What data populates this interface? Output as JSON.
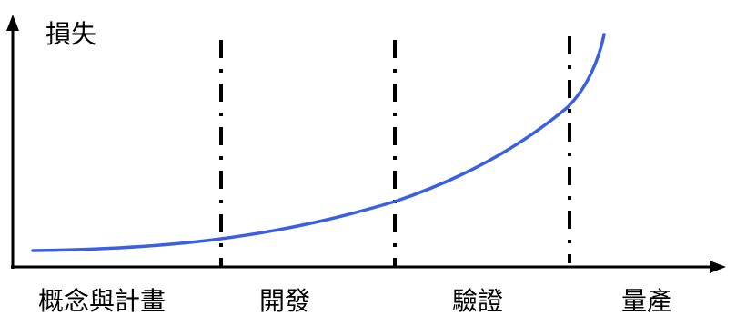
{
  "y_axis_label": "損失",
  "phases": [
    {
      "label": "概念與計畫"
    },
    {
      "label": "開發"
    },
    {
      "label": "驗證"
    },
    {
      "label": "量產"
    }
  ],
  "colors": {
    "axis": "#000000",
    "curve": "#3a5fe0",
    "divider": "#000000",
    "background": "#ffffff"
  }
}
